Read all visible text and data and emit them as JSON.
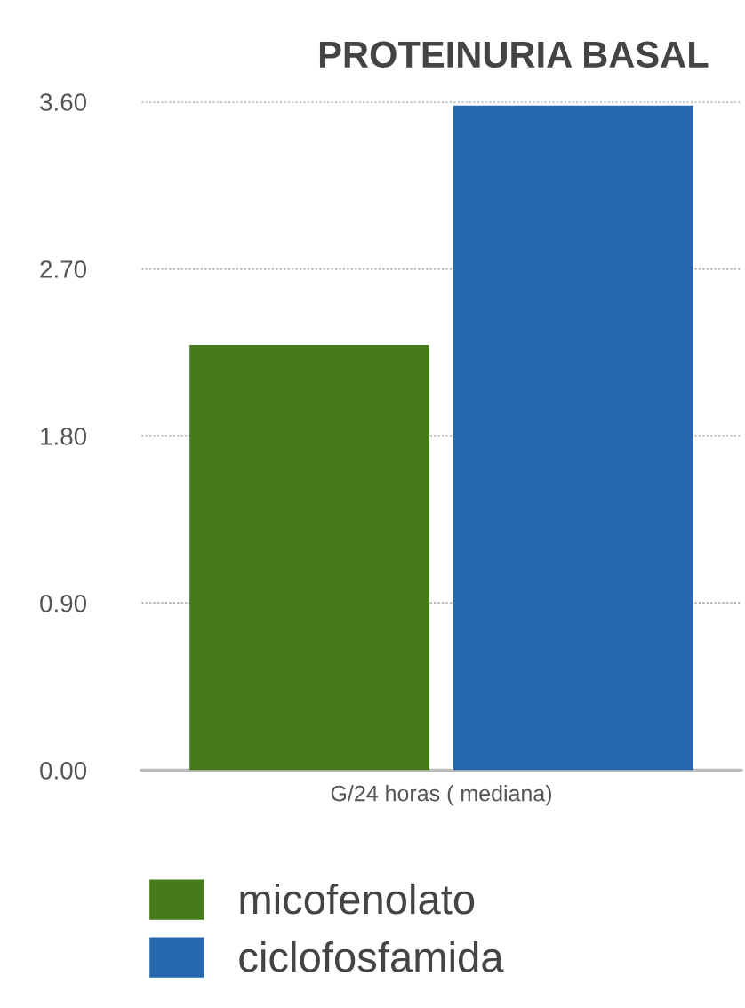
{
  "chart_data": {
    "type": "bar",
    "title": "PROTEINURIA BASAL",
    "categories": [
      "G/24 horas ( mediana)"
    ],
    "series": [
      {
        "name": "micofenolato",
        "color": "#457b1a",
        "values": [
          2.29
        ]
      },
      {
        "name": "ciclofosfamida",
        "color": "#2668b0",
        "values": [
          3.58
        ]
      }
    ],
    "ylim": [
      0,
      3.6
    ],
    "yticks": [
      {
        "value": 0,
        "label": "0.00"
      },
      {
        "value": 0.9,
        "label": "0.90"
      },
      {
        "value": 1.8,
        "label": "1.80"
      },
      {
        "value": 2.7,
        "label": "2.70"
      },
      {
        "value": 3.6,
        "label": "3.60"
      }
    ],
    "grid": "y",
    "legend": "bottom"
  }
}
